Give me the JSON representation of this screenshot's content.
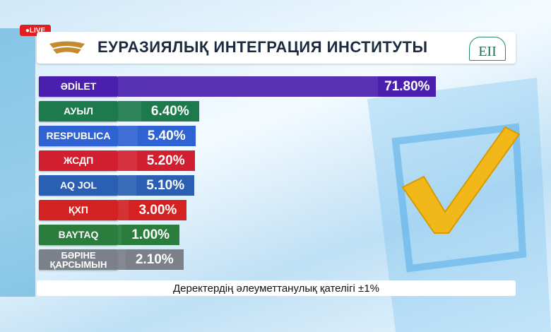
{
  "live": "LIVE",
  "logo_text": "ЕІІ",
  "chart_data": {
    "type": "bar",
    "title": "ЕУРАЗИЯЛЫҚ ИНТЕГРАЦИЯ ИНСТИТУТЫ",
    "categories": [
      "ӘDİLET",
      "АУЫЛ",
      "RESPUBLICA",
      "ЖСДП",
      "AQ JOL",
      "ҚХП",
      "BAYTAQ",
      "БӘРІНЕ ҚАРСЫМЫН"
    ],
    "values": [
      71.8,
      6.4,
      5.4,
      5.2,
      5.1,
      3.0,
      1.0,
      2.1
    ],
    "value_labels": [
      "71.80%",
      "6.40%",
      "5.40%",
      "5.20%",
      "5.10%",
      "3.00%",
      "1.00%",
      "2.10%"
    ],
    "colors": [
      "#4b1fae",
      "#1d7a4c",
      "#2f62d2",
      "#d21f30",
      "#2a5fb4",
      "#d42222",
      "#2a7d3c",
      "#7b8089"
    ],
    "footnote": "Деректердің әлеуметтанулық қателігі ±1%"
  }
}
